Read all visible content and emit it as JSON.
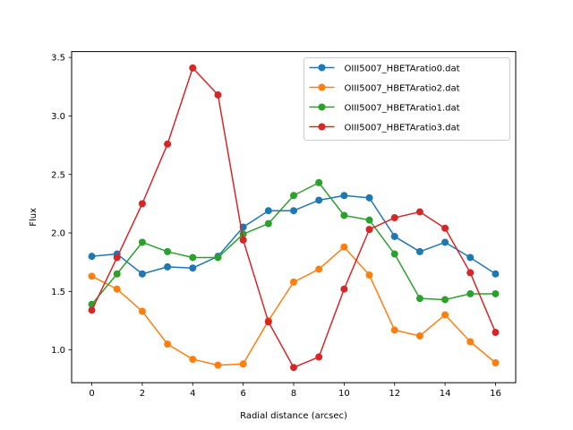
{
  "chart_data": {
    "type": "line",
    "title": "",
    "xlabel": "Radial distance (arcsec)",
    "ylabel": "Flux",
    "xlim": [
      -0.8,
      16.8
    ],
    "ylim": [
      0.72,
      3.55
    ],
    "xticks": [
      0,
      2,
      4,
      6,
      8,
      10,
      12,
      14,
      16
    ],
    "yticks": [
      1.0,
      1.5,
      2.0,
      2.5,
      3.0,
      3.5
    ],
    "ytick_labels": [
      "1.0",
      "1.5",
      "2.0",
      "2.5",
      "3.0",
      "3.5"
    ],
    "grid": false,
    "legend_position": "top-right",
    "x": [
      0,
      1,
      2,
      3,
      4,
      5,
      6,
      7,
      8,
      9,
      10,
      11,
      12,
      13,
      14,
      15,
      16
    ],
    "series": [
      {
        "name": "OIII5007_HBETAratio0.dat",
        "color": "#1f77b4",
        "values": [
          1.8,
          1.82,
          1.65,
          1.71,
          1.7,
          1.8,
          2.05,
          2.19,
          2.19,
          2.28,
          2.32,
          2.3,
          1.97,
          1.84,
          1.92,
          1.79,
          1.65
        ]
      },
      {
        "name": "OIII5007_HBETAratio2.dat",
        "color": "#ff7f0e",
        "values": [
          1.63,
          1.52,
          1.33,
          1.05,
          0.92,
          0.87,
          0.88,
          1.25,
          1.58,
          1.69,
          1.88,
          1.64,
          1.17,
          1.12,
          1.3,
          1.07,
          0.89
        ]
      },
      {
        "name": "OIII5007_HBETAratio1.dat",
        "color": "#2ca02c",
        "values": [
          1.39,
          1.65,
          1.92,
          1.84,
          1.79,
          1.79,
          1.99,
          2.08,
          2.32,
          2.43,
          2.15,
          2.11,
          1.82,
          1.44,
          1.43,
          1.48,
          1.48
        ]
      },
      {
        "name": "OIII5007_HBETAratio3.dat",
        "color": "#d62728",
        "values": [
          1.34,
          1.79,
          2.25,
          2.76,
          3.41,
          3.18,
          1.94,
          1.24,
          0.85,
          0.94,
          1.52,
          2.03,
          2.13,
          2.18,
          2.04,
          1.66,
          1.15
        ]
      }
    ]
  }
}
